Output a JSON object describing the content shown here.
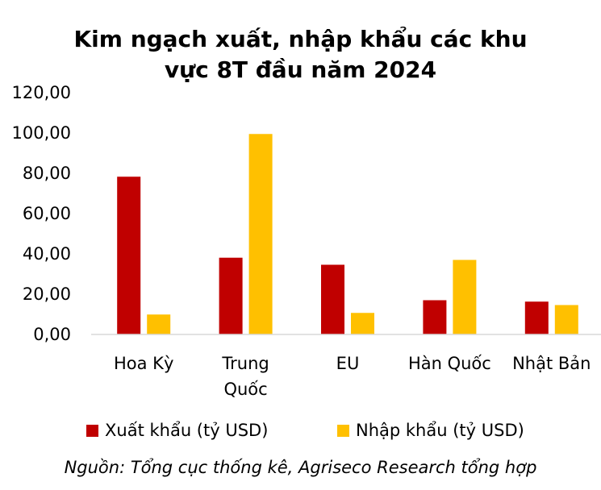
{
  "chart_data": {
    "type": "bar",
    "title_lines": [
      "Kim ngạch xuất, nhập khẩu các khu",
      "vực 8T đầu năm 2024"
    ],
    "categories": [
      [
        "Hoa Kỳ"
      ],
      [
        "Trung",
        "Quốc"
      ],
      [
        "EU"
      ],
      [
        "Hàn Quốc"
      ],
      [
        "Nhật Bản"
      ]
    ],
    "series": [
      {
        "name": "Xuất khẩu (tỷ USD)",
        "color": "#C00000",
        "values": [
          78.3,
          38.1,
          34.6,
          17.0,
          16.3
        ]
      },
      {
        "name": "Nhập khẩu (tỷ USD)",
        "color": "#FFC000",
        "values": [
          9.9,
          99.5,
          10.7,
          37.0,
          14.6
        ]
      }
    ],
    "ylim": [
      0,
      120
    ],
    "yticks": [
      "0,00",
      "20,00",
      "40,00",
      "60,00",
      "80,00",
      "100,00",
      "120,00"
    ],
    "ytick_values": [
      0,
      20,
      40,
      60,
      80,
      100,
      120
    ],
    "grid": false,
    "legend_position": "bottom",
    "source": "Nguồn: Tổng cục thống kê, Agriseco Research tổng hợp"
  }
}
